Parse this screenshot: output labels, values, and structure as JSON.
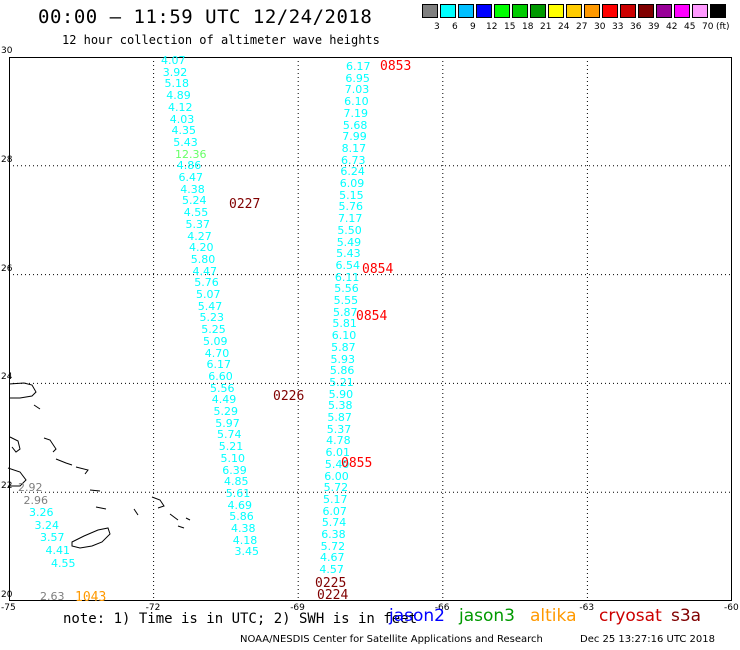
{
  "title": "00:00 – 11:59 UTC 12/24/2018",
  "subtitle": "12 hour collection of altimeter wave heights",
  "legend": {
    "colors": [
      "#7f7f7f",
      "#00ffff",
      "#00bfff",
      "#0000ff",
      "#00ff00",
      "#00cc00",
      "#009900",
      "#ffff00",
      "#ffcc00",
      "#ff9900",
      "#ff0000",
      "#cc0000",
      "#800000",
      "#990099",
      "#ff00ff",
      "#ff99ff",
      "#000000"
    ],
    "labels": [
      "3",
      "6",
      "9",
      "12",
      "15",
      "18",
      "21",
      "24",
      "27",
      "30",
      "33",
      "36",
      "39",
      "42",
      "45",
      "70",
      "(ft)"
    ]
  },
  "axes": {
    "lat_ticks": [
      "30",
      "28",
      "26",
      "24",
      "22",
      "20"
    ],
    "lon_ticks": [
      "-75",
      "-72",
      "-69",
      "-66",
      "-63",
      "-60"
    ]
  },
  "tracks": [
    {
      "name": "west-track",
      "values": [
        {
          "v": "4.07",
          "c": "#00ffff"
        },
        {
          "v": "3.92",
          "c": "#00ffff"
        },
        {
          "v": "5.18",
          "c": "#00ffff"
        },
        {
          "v": "4.89",
          "c": "#00ffff"
        },
        {
          "v": "4.12",
          "c": "#00ffff"
        },
        {
          "v": "4.03",
          "c": "#00ffff"
        },
        {
          "v": "4.35",
          "c": "#00ffff"
        },
        {
          "v": "5.43",
          "c": "#00ffff"
        },
        {
          "v": "12.36",
          "c": "#66ff66"
        },
        {
          "v": "4.86",
          "c": "#00ffff"
        },
        {
          "v": "6.47",
          "c": "#00ffff"
        },
        {
          "v": "4.38",
          "c": "#00ffff"
        },
        {
          "v": "5.24",
          "c": "#00ffff"
        },
        {
          "v": "4.55",
          "c": "#00ffff"
        },
        {
          "v": "5.37",
          "c": "#00ffff"
        },
        {
          "v": "4.27",
          "c": "#00ffff"
        },
        {
          "v": "4.20",
          "c": "#00ffff"
        },
        {
          "v": "5.80",
          "c": "#00ffff"
        },
        {
          "v": "4.47",
          "c": "#00ffff"
        },
        {
          "v": "5.76",
          "c": "#00ffff"
        },
        {
          "v": "5.07",
          "c": "#00ffff"
        },
        {
          "v": "5.47",
          "c": "#00ffff"
        },
        {
          "v": "5.23",
          "c": "#00ffff"
        },
        {
          "v": "5.25",
          "c": "#00ffff"
        },
        {
          "v": "5.09",
          "c": "#00ffff"
        },
        {
          "v": "4.70",
          "c": "#00ffff"
        },
        {
          "v": "6.17",
          "c": "#00ffff"
        },
        {
          "v": "6.60",
          "c": "#00ffff"
        },
        {
          "v": "5.56",
          "c": "#00ffff"
        },
        {
          "v": "4.49",
          "c": "#00ffff"
        },
        {
          "v": "5.29",
          "c": "#00ffff"
        },
        {
          "v": "5.97",
          "c": "#00ffff"
        },
        {
          "v": "5.74",
          "c": "#00ffff"
        },
        {
          "v": "5.21",
          "c": "#00ffff"
        },
        {
          "v": "5.10",
          "c": "#00ffff"
        },
        {
          "v": "6.39",
          "c": "#00ffff"
        },
        {
          "v": "4.85",
          "c": "#00ffff"
        },
        {
          "v": "5.61",
          "c": "#00ffff"
        },
        {
          "v": "4.69",
          "c": "#00ffff"
        },
        {
          "v": "5.86",
          "c": "#00ffff"
        },
        {
          "v": "4.38",
          "c": "#00ffff"
        },
        {
          "v": "4.18",
          "c": "#00ffff"
        },
        {
          "v": "3.45",
          "c": "#00ffff"
        }
      ]
    },
    {
      "name": "east-track",
      "values": [
        {
          "v": "6.17",
          "c": "#00ffff"
        },
        {
          "v": "6.95",
          "c": "#00ffff"
        },
        {
          "v": "7.03",
          "c": "#00ffff"
        },
        {
          "v": "6.10",
          "c": "#00ffff"
        },
        {
          "v": "7.19",
          "c": "#00ffff"
        },
        {
          "v": "5.68",
          "c": "#00ffff"
        },
        {
          "v": "7.99",
          "c": "#00ffff"
        },
        {
          "v": "8.17",
          "c": "#00ffff"
        },
        {
          "v": "6.73",
          "c": "#00ffff"
        },
        {
          "v": "6.24",
          "c": "#00ffff"
        },
        {
          "v": "6.09",
          "c": "#00ffff"
        },
        {
          "v": "5.15",
          "c": "#00ffff"
        },
        {
          "v": "5.76",
          "c": "#00ffff"
        },
        {
          "v": "7.17",
          "c": "#00ffff"
        },
        {
          "v": "5.50",
          "c": "#00ffff"
        },
        {
          "v": "5.49",
          "c": "#00ffff"
        },
        {
          "v": "5.43",
          "c": "#00ffff"
        },
        {
          "v": "6.54",
          "c": "#00ffff"
        },
        {
          "v": "6.11",
          "c": "#00ffff"
        },
        {
          "v": "5.56",
          "c": "#00ffff"
        },
        {
          "v": "5.55",
          "c": "#00ffff"
        },
        {
          "v": "5.87",
          "c": "#00ffff"
        },
        {
          "v": "5.81",
          "c": "#00ffff"
        },
        {
          "v": "6.10",
          "c": "#00ffff"
        },
        {
          "v": "5.87",
          "c": "#00ffff"
        },
        {
          "v": "5.93",
          "c": "#00ffff"
        },
        {
          "v": "5.86",
          "c": "#00ffff"
        },
        {
          "v": "5.21",
          "c": "#00ffff"
        },
        {
          "v": "5.90",
          "c": "#00ffff"
        },
        {
          "v": "5.38",
          "c": "#00ffff"
        },
        {
          "v": "5.87",
          "c": "#00ffff"
        },
        {
          "v": "5.37",
          "c": "#00ffff"
        },
        {
          "v": "4.78",
          "c": "#00ffff"
        },
        {
          "v": "6.01",
          "c": "#00ffff"
        },
        {
          "v": "5.40",
          "c": "#00ffff"
        },
        {
          "v": "6.00",
          "c": "#00ffff"
        },
        {
          "v": "5.72",
          "c": "#00ffff"
        },
        {
          "v": "5.17",
          "c": "#00ffff"
        },
        {
          "v": "6.07",
          "c": "#00ffff"
        },
        {
          "v": "5.74",
          "c": "#00ffff"
        },
        {
          "v": "6.38",
          "c": "#00ffff"
        },
        {
          "v": "5.72",
          "c": "#00ffff"
        },
        {
          "v": "4.67",
          "c": "#00ffff"
        },
        {
          "v": "4.57",
          "c": "#00ffff"
        }
      ]
    },
    {
      "name": "sw-track",
      "values": [
        {
          "v": "2.92",
          "c": "#7f7f7f"
        },
        {
          "v": "2.96",
          "c": "#7f7f7f"
        },
        {
          "v": "3.26",
          "c": "#00ffff"
        },
        {
          "v": "3.24",
          "c": "#00ffff"
        },
        {
          "v": "3.57",
          "c": "#00ffff"
        },
        {
          "v": "4.41",
          "c": "#00ffff"
        },
        {
          "v": "4.55",
          "c": "#00ffff"
        },
        {
          "v": "2.63",
          "c": "#7f7f7f"
        }
      ]
    }
  ],
  "times": [
    {
      "t": "0853",
      "c": "#ff0000"
    },
    {
      "t": "0227",
      "c": "#800000"
    },
    {
      "t": "0854",
      "c": "#ff0000"
    },
    {
      "t": "0854",
      "c": "#ff0000"
    },
    {
      "t": "0226",
      "c": "#800000"
    },
    {
      "t": "0855",
      "c": "#ff0000"
    },
    {
      "t": "0225",
      "c": "#800000"
    },
    {
      "t": "0224",
      "c": "#800000"
    },
    {
      "t": "1043",
      "c": "#ff9900"
    }
  ],
  "note": "note: 1) Time is in UTC; 2) SWH is in feet",
  "satellites": [
    {
      "name": "jason2",
      "color": "#0000ff"
    },
    {
      "name": "jason3",
      "color": "#009900"
    },
    {
      "name": "altika",
      "color": "#ff9900"
    },
    {
      "name": "cryosat",
      "color": "#cc0000"
    },
    {
      "name": "s3a",
      "color": "#800000"
    }
  ],
  "credit": "NOAA/NESDIS Center for Satellite Applications and Research",
  "timestamp": "Dec 25 13:27:16 UTC 2018"
}
